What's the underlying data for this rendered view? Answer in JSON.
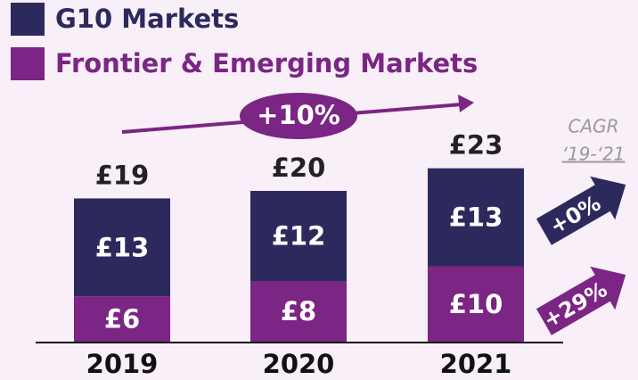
{
  "chart_data": {
    "type": "stacked_bar",
    "categories": [
      "2019",
      "2020",
      "2021"
    ],
    "series": [
      {
        "name": "Frontier & Emerging Markets",
        "color": "#7b2584",
        "values": [
          6,
          8,
          10
        ],
        "value_labels": [
          "£6",
          "£8",
          "£10"
        ]
      },
      {
        "name": "G10 Markets",
        "color": "#2c2a5c",
        "values": [
          13,
          12,
          13
        ],
        "value_labels": [
          "£13",
          "£12",
          "£13"
        ]
      }
    ],
    "totals": [
      19,
      20,
      23
    ],
    "total_labels": [
      "£19",
      "£20",
      "£23"
    ],
    "annotations": {
      "growth": "+10%",
      "cagr_title": "CAGR",
      "cagr_period": "‘19-‘21",
      "cagr_g10": "+0%",
      "cagr_fem": "+29%"
    }
  }
}
